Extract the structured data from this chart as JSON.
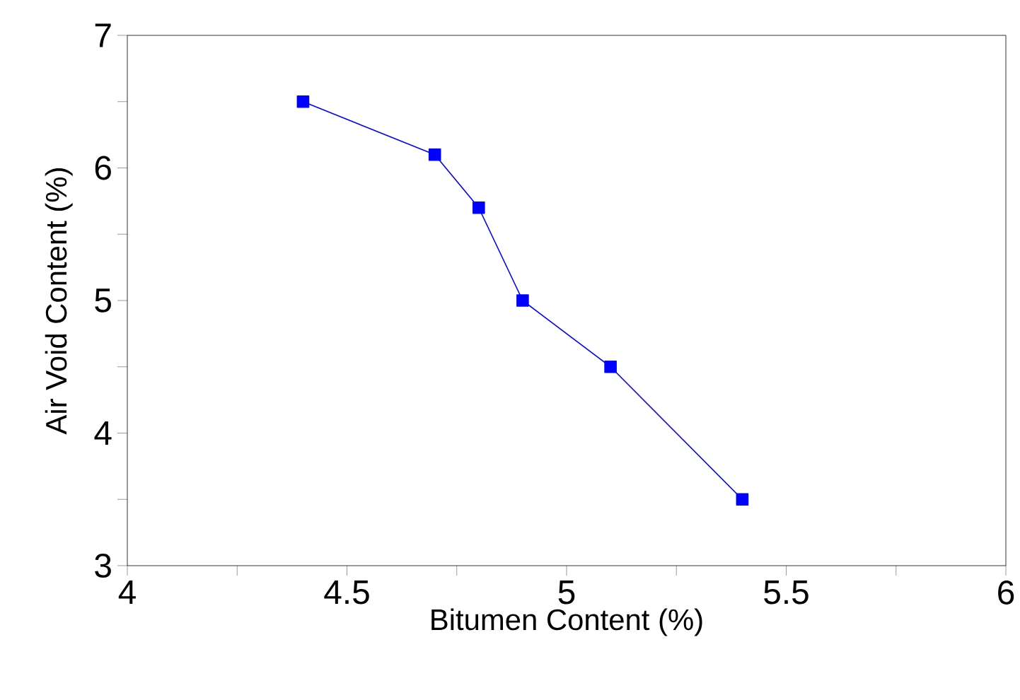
{
  "chart_data": {
    "type": "line",
    "xlabel": "Bitumen Content  (%)",
    "ylabel": "Air Void Content  (%)",
    "x": [
      4.4,
      4.7,
      4.8,
      4.9,
      5.1,
      5.4
    ],
    "series": [
      {
        "color": "#0000ff",
        "values": [
          6.5,
          6.1,
          5.7,
          5.0,
          4.5,
          3.5
        ]
      }
    ],
    "xlim": [
      4,
      6
    ],
    "ylim": [
      3,
      7
    ],
    "xticks": [
      4,
      {
        "value": 4.25,
        "label": null
      },
      4.5,
      {
        "value": 4.75,
        "label": null
      },
      5,
      {
        "value": 5.25,
        "label": null
      },
      5.5,
      {
        "value": 5.75,
        "label": null
      },
      6
    ],
    "yticks": [
      3,
      {
        "value": 3.5,
        "label": null
      },
      4,
      {
        "value": 4.5,
        "label": null
      },
      5,
      {
        "value": 5.5,
        "label": null
      },
      6,
      {
        "value": 6.5,
        "label": null
      },
      7
    ],
    "marker": "square",
    "line_style": "solid",
    "grid": false
  }
}
